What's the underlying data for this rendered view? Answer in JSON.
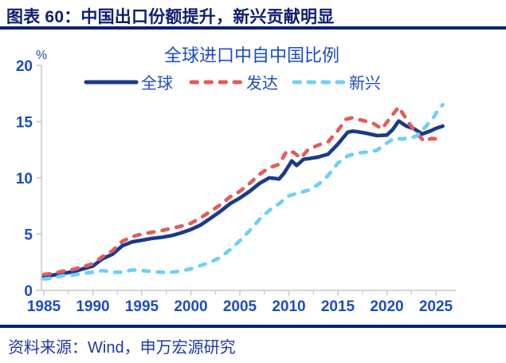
{
  "header": {
    "title": "图表 60：中国出口份额提升，新兴贡献明显"
  },
  "footer": {
    "source_text": "资料来源：Wind，申万宏源研究"
  },
  "colors": {
    "header_navy": "#0e1f6e",
    "text_blue": "#1c4dc0",
    "footer_blue": "#1e3aa0",
    "axis_gray": "#c4c6ca",
    "series_global": "#1b3a8c",
    "series_developed": "#e25c5c",
    "series_emerging": "#70cff5"
  },
  "chart_data": {
    "type": "line",
    "title": "全球进口中自中国比例",
    "ylabel": "%",
    "xlabel": "",
    "xlim": [
      1984.75,
      2027
    ],
    "ylim": [
      0,
      20
    ],
    "x_ticks": [
      1985,
      1990,
      1995,
      2000,
      2005,
      2010,
      2015,
      2020,
      2025
    ],
    "x_minor_tick_step": 2.5,
    "y_ticks": [
      0,
      5,
      10,
      15,
      20
    ],
    "grid": false,
    "legend_position": "top",
    "series": [
      {
        "name": "全球",
        "style": "solid",
        "color": "#1b3a8c",
        "points": [
          [
            1985,
            1.2
          ],
          [
            1986,
            1.35
          ],
          [
            1987,
            1.5
          ],
          [
            1988,
            1.65
          ],
          [
            1989,
            1.9
          ],
          [
            1990,
            2.15
          ],
          [
            1991,
            2.8
          ],
          [
            1992,
            3.2
          ],
          [
            1993,
            3.95
          ],
          [
            1994,
            4.3
          ],
          [
            1995,
            4.45
          ],
          [
            1996,
            4.6
          ],
          [
            1997,
            4.7
          ],
          [
            1998,
            4.85
          ],
          [
            1999,
            5.1
          ],
          [
            2000,
            5.4
          ],
          [
            2001,
            5.8
          ],
          [
            2002,
            6.4
          ],
          [
            2003,
            7.0
          ],
          [
            2004,
            7.7
          ],
          [
            2005,
            8.2
          ],
          [
            2006,
            8.8
          ],
          [
            2007,
            9.5
          ],
          [
            2008,
            10.0
          ],
          [
            2009,
            9.9
          ],
          [
            2009.5,
            10.4
          ],
          [
            2010.3,
            11.5
          ],
          [
            2010.8,
            11.1
          ],
          [
            2011.5,
            11.65
          ],
          [
            2012,
            11.7
          ],
          [
            2013,
            11.85
          ],
          [
            2014,
            12.1
          ],
          [
            2015,
            13.0
          ],
          [
            2016,
            14.05
          ],
          [
            2016.5,
            14.15
          ],
          [
            2017,
            14.1
          ],
          [
            2018,
            13.95
          ],
          [
            2019,
            13.75
          ],
          [
            2020,
            13.8
          ],
          [
            2020.6,
            14.3
          ],
          [
            2021.2,
            15.05
          ],
          [
            2022,
            14.6
          ],
          [
            2022.8,
            14.35
          ],
          [
            2023.6,
            13.9
          ],
          [
            2024.4,
            14.15
          ],
          [
            2025,
            14.4
          ],
          [
            2025.7,
            14.6
          ]
        ]
      },
      {
        "name": "发达",
        "style": "dashed",
        "color": "#e25c5c",
        "points": [
          [
            1985,
            1.4
          ],
          [
            1986,
            1.5
          ],
          [
            1987,
            1.7
          ],
          [
            1988,
            1.85
          ],
          [
            1989,
            2.1
          ],
          [
            1990,
            2.35
          ],
          [
            1991,
            3.0
          ],
          [
            1992,
            3.5
          ],
          [
            1993,
            4.35
          ],
          [
            1994,
            4.75
          ],
          [
            1995,
            5.0
          ],
          [
            1996,
            5.15
          ],
          [
            1997,
            5.3
          ],
          [
            1998,
            5.5
          ],
          [
            1999,
            5.7
          ],
          [
            2000,
            5.95
          ],
          [
            2001,
            6.45
          ],
          [
            2002,
            7.0
          ],
          [
            2003,
            7.6
          ],
          [
            2004,
            8.3
          ],
          [
            2005,
            8.8
          ],
          [
            2006,
            9.5
          ],
          [
            2007,
            10.3
          ],
          [
            2008,
            10.9
          ],
          [
            2009,
            11.2
          ],
          [
            2009.8,
            12.4
          ],
          [
            2010.5,
            12.25
          ],
          [
            2011.2,
            11.75
          ],
          [
            2012,
            12.55
          ],
          [
            2013,
            12.9
          ],
          [
            2014,
            13.2
          ],
          [
            2015,
            14.2
          ],
          [
            2015.8,
            15.2
          ],
          [
            2016.5,
            15.35
          ],
          [
            2017.5,
            15.1
          ],
          [
            2018.5,
            14.9
          ],
          [
            2019.5,
            14.35
          ],
          [
            2020.3,
            15.3
          ],
          [
            2021.2,
            16.3
          ],
          [
            2022,
            15.2
          ],
          [
            2022.8,
            14.2
          ],
          [
            2023.8,
            13.25
          ],
          [
            2024.5,
            13.5
          ],
          [
            2025.2,
            13.45
          ],
          [
            2025.7,
            13.3
          ]
        ]
      },
      {
        "name": "新兴",
        "style": "dashed",
        "color": "#70cff5",
        "points": [
          [
            1985,
            1.0
          ],
          [
            1986,
            1.1
          ],
          [
            1987,
            1.3
          ],
          [
            1988,
            1.35
          ],
          [
            1989,
            1.5
          ],
          [
            1990,
            1.6
          ],
          [
            1991,
            1.75
          ],
          [
            1992,
            1.6
          ],
          [
            1993,
            1.6
          ],
          [
            1994,
            1.8
          ],
          [
            1995,
            1.75
          ],
          [
            1996,
            1.65
          ],
          [
            1997,
            1.6
          ],
          [
            1998,
            1.6
          ],
          [
            1999,
            1.7
          ],
          [
            2000,
            1.9
          ],
          [
            2001,
            2.2
          ],
          [
            2002,
            2.5
          ],
          [
            2003,
            2.9
          ],
          [
            2004,
            3.6
          ],
          [
            2005,
            4.4
          ],
          [
            2006,
            5.3
          ],
          [
            2007,
            6.3
          ],
          [
            2008,
            7.1
          ],
          [
            2009,
            7.7
          ],
          [
            2010,
            8.4
          ],
          [
            2011,
            8.65
          ],
          [
            2012,
            8.9
          ],
          [
            2013,
            9.4
          ],
          [
            2014,
            10.2
          ],
          [
            2015,
            11.3
          ],
          [
            2016,
            11.95
          ],
          [
            2017,
            12.2
          ],
          [
            2018,
            12.3
          ],
          [
            2019,
            12.45
          ],
          [
            2020,
            13.1
          ],
          [
            2020.8,
            13.55
          ],
          [
            2021.5,
            13.45
          ],
          [
            2022.3,
            13.55
          ],
          [
            2023,
            13.7
          ],
          [
            2024,
            14.6
          ],
          [
            2024.7,
            15.3
          ],
          [
            2025.2,
            16.0
          ],
          [
            2025.7,
            16.5
          ]
        ]
      }
    ]
  }
}
